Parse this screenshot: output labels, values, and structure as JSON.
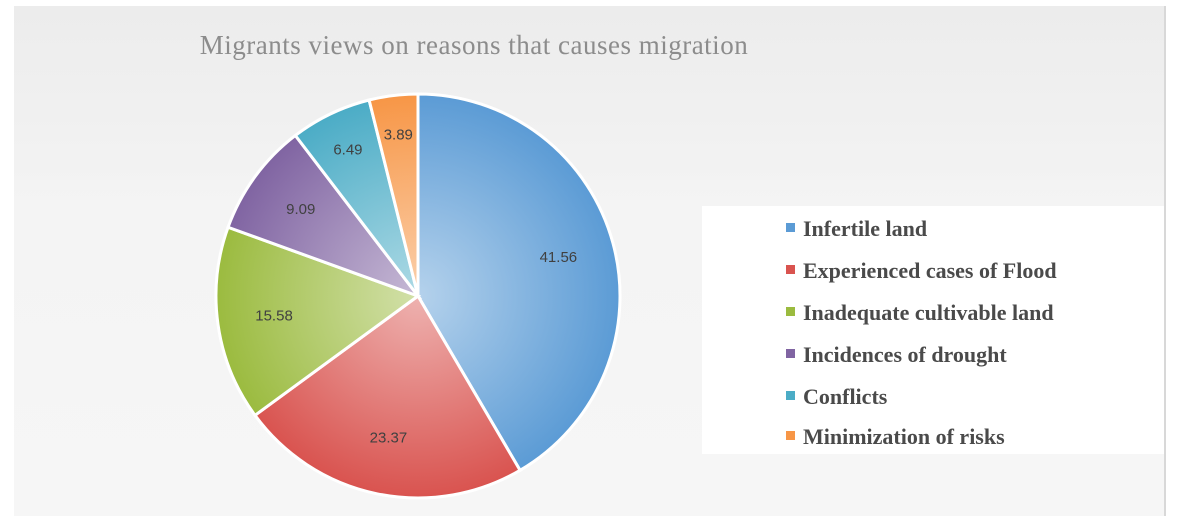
{
  "chart_data": {
    "type": "pie",
    "title": "Migrants views on reasons that causes migration",
    "slices": [
      {
        "label": "Infertile land",
        "value": 41.56,
        "color": "#5b9bd5"
      },
      {
        "label": "Experienced cases of Flood",
        "value": 23.37,
        "color": "#d9534f"
      },
      {
        "label": "Inadequate cultivable land",
        "value": 15.58,
        "color": "#9bbb3f"
      },
      {
        "label": "Incidences of drought",
        "value": 9.09,
        "color": "#8064a2"
      },
      {
        "label": "Conflicts",
        "value": 6.49,
        "color": "#4bacc6"
      },
      {
        "label": "Minimization of risks",
        "value": 3.89,
        "color": "#f79646"
      }
    ],
    "legend_position": "right",
    "data_labels": true
  }
}
